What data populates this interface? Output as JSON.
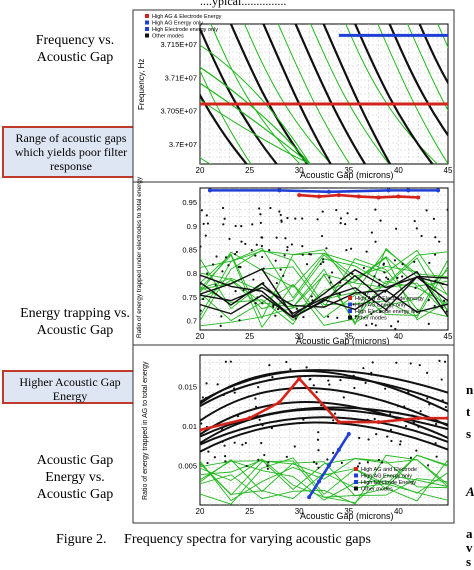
{
  "header_fragment": "....ypical...............",
  "side_labels": {
    "frequency": [
      "Frequency vs.",
      "Acoustic Gap"
    ],
    "energy_trapping": [
      "Energy trapping vs.",
      "Acoustic Gap"
    ],
    "acoustic_gap_energy": [
      "Acoustic Gap",
      "Energy vs.",
      "Acoustic Gap"
    ]
  },
  "callouts": {
    "poor_filter": [
      "Range of acoustic gaps",
      "which yields poor filter",
      "response"
    ],
    "higher_energy": [
      "Higher Acoustic Gap",
      "Energy"
    ]
  },
  "caption": "Figure 2.     Frequency spectra for varying acoustic gaps",
  "right_edge_fragments": [
    "n",
    "t",
    "s",
    "A",
    "a",
    "v",
    "s"
  ],
  "colors": {
    "red": "#d4231a",
    "blue": "#1f3fd6",
    "green": "#22b81e",
    "black": "#111111",
    "callout_border": "#c0392b",
    "callout_fill": "#dfe6f3"
  },
  "chart_data": [
    {
      "type": "line",
      "xlabel": "Acoustic Gap (microns)",
      "ylabel": "Frequency, Hz",
      "x_ticks": [
        "20",
        "25",
        "30",
        "35",
        "40",
        "45"
      ],
      "y_ticks": [
        "3.7E+07",
        "3.705E+07",
        "3.71E+07",
        "3.715E+07"
      ],
      "xlim": [
        20,
        45
      ],
      "ylim": [
        36970000,
        37180000
      ],
      "legend": [
        "High AG & Electrode Energy",
        "High AG Energy only",
        "High Electrode energy only",
        "Other modes"
      ],
      "legend_placement": "top",
      "grid": true,
      "series": [
        {
          "name": "High AG & Electrode Energy",
          "color": "red",
          "x": [
            20,
            45
          ],
          "y": [
            37060000,
            37060000
          ]
        },
        {
          "name": "High Electrode energy only",
          "color": "blue",
          "x": [
            34,
            45
          ],
          "y": [
            37163000,
            37163000
          ]
        }
      ]
    },
    {
      "type": "scatter",
      "xlabel": "Acoustic Gap (microns)",
      "ylabel": "Ratio of energy trapped under electrodes to total energy",
      "x_ticks": [
        "20",
        "25",
        "30",
        "35",
        "40",
        "45"
      ],
      "y_ticks": [
        "0.7",
        "0.75",
        "0.8",
        "0.85",
        "0.9",
        "0.95"
      ],
      "xlim": [
        20,
        45
      ],
      "ylim": [
        0.68,
        0.98
      ],
      "legend": [
        "High AG & Electrode energy",
        "High AG Energy only",
        "High Electrode energy only",
        "Other modes"
      ],
      "legend_placement": "bottom-right",
      "grid": true,
      "series": [
        {
          "name": "High AG & Electrode energy",
          "color": "red",
          "x": [
            30,
            32,
            34,
            36,
            38,
            40,
            42
          ],
          "y": [
            0.965,
            0.962,
            0.965,
            0.962,
            0.96,
            0.962,
            0.96
          ]
        },
        {
          "name": "High Electrode energy only",
          "color": "blue",
          "x": [
            21,
            28,
            33,
            39,
            41,
            44
          ],
          "y": [
            0.975,
            0.975,
            0.972,
            0.975,
            0.975,
            0.975
          ]
        }
      ]
    },
    {
      "type": "scatter",
      "xlabel": "Acoustic Gap (microns)",
      "ylabel": "Ratio of energy trapped in AG to total energy",
      "x_ticks": [
        "20",
        "25",
        "30",
        "35",
        "40"
      ],
      "y_ticks": [
        "0.005",
        "0.01",
        "0.015"
      ],
      "xlim": [
        20,
        45
      ],
      "ylim": [
        0,
        0.019
      ],
      "legend": [
        "High AG and Electrode",
        "High AG Energy only",
        "High Electrode Energy",
        "Other modes"
      ],
      "legend_placement": "bottom-right",
      "grid": true,
      "series": [
        {
          "name": "High AG and Electrode",
          "color": "red",
          "x": [
            20,
            25,
            28,
            30,
            34,
            38,
            42,
            45
          ],
          "y": [
            0.0095,
            0.011,
            0.013,
            0.016,
            0.0105,
            0.0105,
            0.011,
            0.011
          ]
        },
        {
          "name": "High Electrode Energy",
          "color": "blue",
          "x": [
            31,
            32,
            33,
            34,
            35
          ],
          "y": [
            0.001,
            0.003,
            0.005,
            0.007,
            0.009
          ]
        }
      ]
    }
  ]
}
